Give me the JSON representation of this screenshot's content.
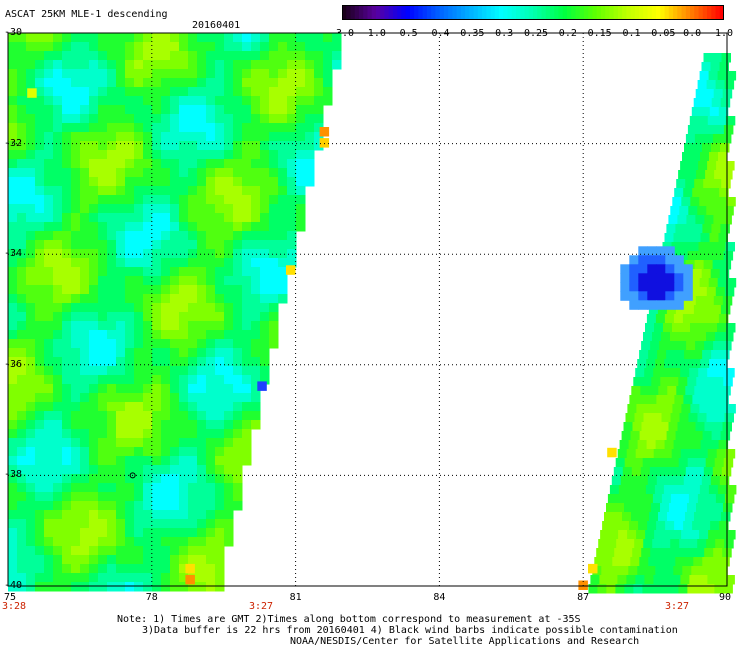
{
  "title": "ASCAT 25KM MLE-1 descending",
  "date": "20160401",
  "colorbar": {
    "labels": [
      "-3.0",
      "-1.0",
      "-0.5",
      "-0.4",
      "-0.35",
      "-0.3",
      "-0.25",
      "-0.2",
      "-0.15",
      "-0.1",
      "-0.05",
      "0.0",
      "1.0"
    ],
    "colors": [
      "#1a001a",
      "#5a00a0",
      "#0000ff",
      "#0060ff",
      "#00b0ff",
      "#00ffff",
      "#00ffb0",
      "#00ff40",
      "#60ff00",
      "#c0ff00",
      "#ffff00",
      "#ff8000",
      "#ff0000"
    ]
  },
  "map": {
    "lat_labels": [
      "-30",
      "-32",
      "-34",
      "-36",
      "-38",
      "-40"
    ],
    "lon_labels": [
      "75",
      "78",
      "81",
      "84",
      "87",
      "90"
    ],
    "time_labels": [
      "3:28",
      "3:27",
      "3:27"
    ]
  },
  "notes": [
    "Note: 1) Times are GMT 2)Times along bottom correspond to measurement at -35S",
    "3)Data buffer is 22 hrs from 20160401 4) Black wind barbs indicate possible contamination",
    "NOAA/NESDIS/Center for Satellite Applications and Research"
  ]
}
